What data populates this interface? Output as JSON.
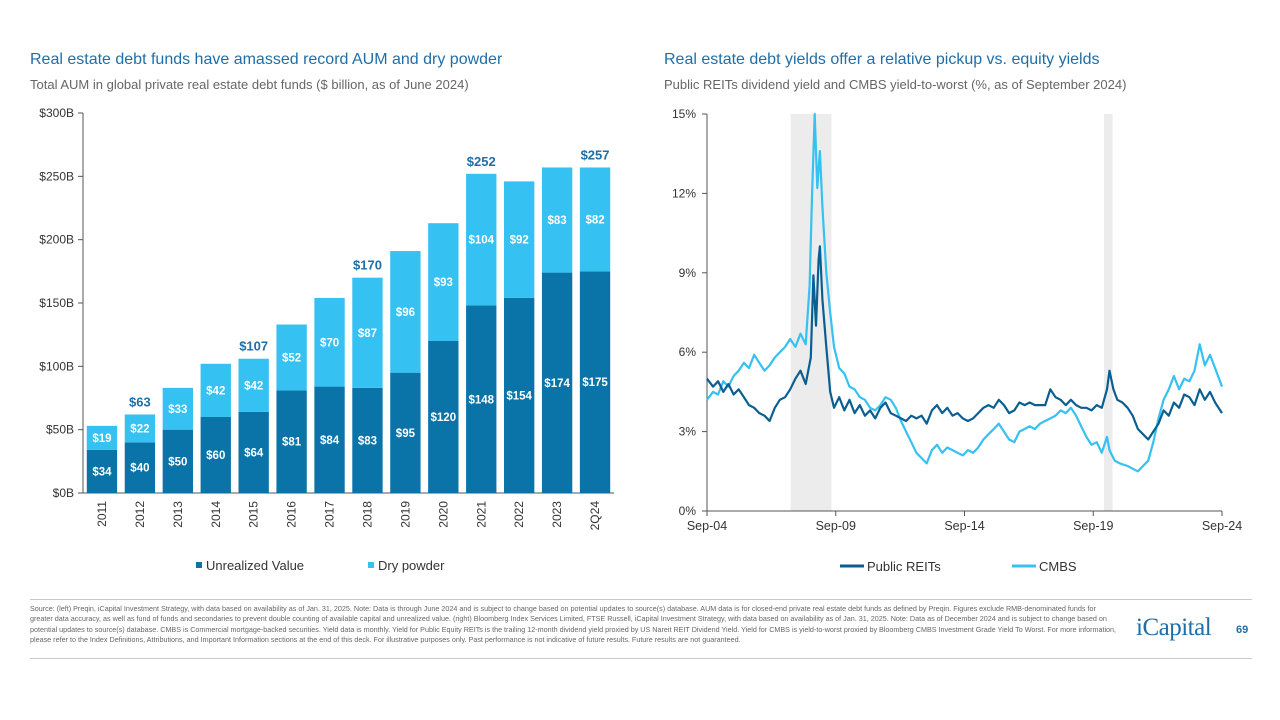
{
  "left_chart": {
    "title": "Real estate debt funds have amassed record AUM and dry powder",
    "subtitle": "Total AUM in global private real estate debt funds ($ billion, as of June 2024)",
    "chart_data": {
      "type": "bar",
      "stacked": true,
      "categories": [
        "2011",
        "2012",
        "2013",
        "2014",
        "2015",
        "2016",
        "2017",
        "2018",
        "2019",
        "2020",
        "2021",
        "2022",
        "2023",
        "2Q24"
      ],
      "series": [
        {
          "name": "Unrealized Value",
          "color": "#0a73a8",
          "values": [
            34,
            40,
            50,
            60,
            64,
            81,
            84,
            83,
            95,
            120,
            148,
            154,
            174,
            175
          ]
        },
        {
          "name": "Dry powder",
          "color": "#35c1f1",
          "values": [
            19,
            22,
            33,
            42,
            42,
            52,
            70,
            87,
            96,
            93,
            104,
            92,
            83,
            82
          ]
        }
      ],
      "totals": [
        {
          "index": 1,
          "label": "$63"
        },
        {
          "index": 4,
          "label": "$107"
        },
        {
          "index": 7,
          "label": "$170"
        },
        {
          "index": 10,
          "label": "$252"
        },
        {
          "index": 13,
          "label": "$257"
        }
      ],
      "yticks": [
        "$0B",
        "$50B",
        "$100B",
        "$150B",
        "$200B",
        "$250B",
        "$300B"
      ],
      "ylim": [
        0,
        300
      ],
      "legend": [
        "Unrealized Value",
        "Dry powder"
      ],
      "legend_position": "bottom"
    }
  },
  "right_chart": {
    "title": "Real estate debt yields offer a relative pickup vs. equity yields",
    "subtitle": "Public REITs dividend yield and CMBS yield-to-worst (%, as of September  2024)",
    "chart_data": {
      "type": "line",
      "xlim": [
        2004.667,
        2024.667
      ],
      "ylim": [
        0,
        15
      ],
      "xticks": [
        {
          "value": 2004.667,
          "label": "Sep-04"
        },
        {
          "value": 2009.667,
          "label": "Sep-09"
        },
        {
          "value": 2014.667,
          "label": "Sep-14"
        },
        {
          "value": 2019.667,
          "label": "Sep-19"
        },
        {
          "value": 2024.667,
          "label": "Sep-24"
        }
      ],
      "yticks": [
        {
          "value": 0,
          "label": "0%"
        },
        {
          "value": 3,
          "label": "3%"
        },
        {
          "value": 6,
          "label": "6%"
        },
        {
          "value": 9,
          "label": "9%"
        },
        {
          "value": 12,
          "label": "12%"
        },
        {
          "value": 15,
          "label": "15%"
        }
      ],
      "recessions": [
        [
          2007.917,
          2009.5
        ],
        [
          2020.083,
          2020.417
        ]
      ],
      "legend_position": "bottom",
      "series": [
        {
          "name": "Public REITs",
          "color": "#0a5f92",
          "points": [
            [
              2004.667,
              5.0
            ],
            [
              2004.9,
              4.7
            ],
            [
              2005.1,
              4.9
            ],
            [
              2005.3,
              4.5
            ],
            [
              2005.5,
              4.8
            ],
            [
              2005.7,
              4.4
            ],
            [
              2005.9,
              4.6
            ],
            [
              2006.1,
              4.3
            ],
            [
              2006.3,
              4.0
            ],
            [
              2006.5,
              3.9
            ],
            [
              2006.7,
              3.7
            ],
            [
              2006.9,
              3.6
            ],
            [
              2007.1,
              3.4
            ],
            [
              2007.3,
              3.9
            ],
            [
              2007.5,
              4.2
            ],
            [
              2007.7,
              4.3
            ],
            [
              2007.9,
              4.6
            ],
            [
              2008.1,
              5.0
            ],
            [
              2008.3,
              5.3
            ],
            [
              2008.5,
              4.8
            ],
            [
              2008.7,
              5.8
            ],
            [
              2008.8,
              8.9
            ],
            [
              2008.9,
              7.0
            ],
            [
              2009.0,
              9.5
            ],
            [
              2009.05,
              10.0
            ],
            [
              2009.15,
              8.0
            ],
            [
              2009.3,
              6.2
            ],
            [
              2009.45,
              4.5
            ],
            [
              2009.6,
              3.9
            ],
            [
              2009.8,
              4.3
            ],
            [
              2010.0,
              3.8
            ],
            [
              2010.2,
              4.2
            ],
            [
              2010.4,
              3.7
            ],
            [
              2010.6,
              4.0
            ],
            [
              2010.8,
              3.6
            ],
            [
              2011.0,
              3.8
            ],
            [
              2011.2,
              3.5
            ],
            [
              2011.4,
              3.9
            ],
            [
              2011.6,
              4.1
            ],
            [
              2011.8,
              3.7
            ],
            [
              2012.0,
              3.6
            ],
            [
              2012.2,
              3.5
            ],
            [
              2012.4,
              3.4
            ],
            [
              2012.6,
              3.6
            ],
            [
              2012.8,
              3.5
            ],
            [
              2013.0,
              3.6
            ],
            [
              2013.2,
              3.3
            ],
            [
              2013.4,
              3.8
            ],
            [
              2013.6,
              4.0
            ],
            [
              2013.8,
              3.7
            ],
            [
              2014.0,
              3.9
            ],
            [
              2014.2,
              3.6
            ],
            [
              2014.4,
              3.7
            ],
            [
              2014.6,
              3.5
            ],
            [
              2014.8,
              3.4
            ],
            [
              2015.0,
              3.5
            ],
            [
              2015.2,
              3.7
            ],
            [
              2015.4,
              3.9
            ],
            [
              2015.6,
              4.0
            ],
            [
              2015.8,
              3.9
            ],
            [
              2016.0,
              4.2
            ],
            [
              2016.2,
              4.0
            ],
            [
              2016.4,
              3.7
            ],
            [
              2016.6,
              3.8
            ],
            [
              2016.8,
              4.1
            ],
            [
              2017.0,
              4.0
            ],
            [
              2017.2,
              4.1
            ],
            [
              2017.4,
              4.0
            ],
            [
              2017.6,
              4.0
            ],
            [
              2017.8,
              4.0
            ],
            [
              2018.0,
              4.6
            ],
            [
              2018.2,
              4.3
            ],
            [
              2018.4,
              4.2
            ],
            [
              2018.6,
              4.0
            ],
            [
              2018.8,
              4.2
            ],
            [
              2019.0,
              4.0
            ],
            [
              2019.2,
              3.9
            ],
            [
              2019.4,
              3.9
            ],
            [
              2019.6,
              3.8
            ],
            [
              2019.8,
              4.0
            ],
            [
              2020.0,
              3.9
            ],
            [
              2020.2,
              4.6
            ],
            [
              2020.3,
              5.3
            ],
            [
              2020.45,
              4.6
            ],
            [
              2020.6,
              4.2
            ],
            [
              2020.8,
              4.1
            ],
            [
              2021.0,
              3.9
            ],
            [
              2021.2,
              3.6
            ],
            [
              2021.4,
              3.1
            ],
            [
              2021.6,
              2.9
            ],
            [
              2021.8,
              2.7
            ],
            [
              2022.0,
              3.0
            ],
            [
              2022.2,
              3.3
            ],
            [
              2022.4,
              3.8
            ],
            [
              2022.6,
              3.6
            ],
            [
              2022.8,
              4.1
            ],
            [
              2023.0,
              3.9
            ],
            [
              2023.2,
              4.4
            ],
            [
              2023.4,
              4.3
            ],
            [
              2023.6,
              4.0
            ],
            [
              2023.8,
              4.6
            ],
            [
              2024.0,
              4.2
            ],
            [
              2024.2,
              4.5
            ],
            [
              2024.4,
              4.1
            ],
            [
              2024.667,
              3.7
            ]
          ]
        },
        {
          "name": "CMBS",
          "color": "#35c1f1",
          "points": [
            [
              2004.667,
              4.2
            ],
            [
              2004.9,
              4.5
            ],
            [
              2005.1,
              4.4
            ],
            [
              2005.3,
              4.9
            ],
            [
              2005.5,
              4.7
            ],
            [
              2005.7,
              5.1
            ],
            [
              2005.9,
              5.3
            ],
            [
              2006.1,
              5.6
            ],
            [
              2006.3,
              5.4
            ],
            [
              2006.5,
              5.9
            ],
            [
              2006.7,
              5.6
            ],
            [
              2006.9,
              5.3
            ],
            [
              2007.1,
              5.5
            ],
            [
              2007.3,
              5.8
            ],
            [
              2007.5,
              6.0
            ],
            [
              2007.7,
              6.2
            ],
            [
              2007.9,
              6.5
            ],
            [
              2008.1,
              6.2
            ],
            [
              2008.3,
              6.7
            ],
            [
              2008.5,
              6.3
            ],
            [
              2008.65,
              8.5
            ],
            [
              2008.75,
              12.0
            ],
            [
              2008.85,
              15.0
            ],
            [
              2008.95,
              12.2
            ],
            [
              2009.05,
              13.6
            ],
            [
              2009.15,
              11.5
            ],
            [
              2009.3,
              9.0
            ],
            [
              2009.45,
              7.5
            ],
            [
              2009.6,
              6.2
            ],
            [
              2009.8,
              5.4
            ],
            [
              2010.0,
              5.2
            ],
            [
              2010.2,
              4.7
            ],
            [
              2010.4,
              4.6
            ],
            [
              2010.6,
              4.3
            ],
            [
              2010.8,
              4.2
            ],
            [
              2011.0,
              3.9
            ],
            [
              2011.2,
              3.8
            ],
            [
              2011.4,
              4.0
            ],
            [
              2011.6,
              4.3
            ],
            [
              2011.8,
              4.2
            ],
            [
              2012.0,
              3.9
            ],
            [
              2012.2,
              3.4
            ],
            [
              2012.4,
              3.0
            ],
            [
              2012.6,
              2.6
            ],
            [
              2012.8,
              2.2
            ],
            [
              2013.0,
              2.0
            ],
            [
              2013.2,
              1.8
            ],
            [
              2013.4,
              2.3
            ],
            [
              2013.6,
              2.5
            ],
            [
              2013.8,
              2.2
            ],
            [
              2014.0,
              2.4
            ],
            [
              2014.2,
              2.3
            ],
            [
              2014.4,
              2.2
            ],
            [
              2014.6,
              2.1
            ],
            [
              2014.8,
              2.3
            ],
            [
              2015.0,
              2.2
            ],
            [
              2015.2,
              2.4
            ],
            [
              2015.4,
              2.7
            ],
            [
              2015.6,
              2.9
            ],
            [
              2015.8,
              3.1
            ],
            [
              2016.0,
              3.3
            ],
            [
              2016.2,
              3.0
            ],
            [
              2016.4,
              2.7
            ],
            [
              2016.6,
              2.6
            ],
            [
              2016.8,
              3.0
            ],
            [
              2017.0,
              3.1
            ],
            [
              2017.2,
              3.2
            ],
            [
              2017.4,
              3.1
            ],
            [
              2017.6,
              3.3
            ],
            [
              2017.8,
              3.4
            ],
            [
              2018.0,
              3.5
            ],
            [
              2018.2,
              3.6
            ],
            [
              2018.4,
              3.8
            ],
            [
              2018.6,
              3.7
            ],
            [
              2018.8,
              3.9
            ],
            [
              2019.0,
              3.6
            ],
            [
              2019.2,
              3.2
            ],
            [
              2019.4,
              2.8
            ],
            [
              2019.6,
              2.5
            ],
            [
              2019.8,
              2.6
            ],
            [
              2020.0,
              2.2
            ],
            [
              2020.2,
              2.8
            ],
            [
              2020.3,
              2.3
            ],
            [
              2020.5,
              1.9
            ],
            [
              2020.7,
              1.8
            ],
            [
              2021.0,
              1.7
            ],
            [
              2021.2,
              1.6
            ],
            [
              2021.4,
              1.5
            ],
            [
              2021.6,
              1.7
            ],
            [
              2021.8,
              1.9
            ],
            [
              2022.0,
              2.6
            ],
            [
              2022.2,
              3.5
            ],
            [
              2022.4,
              4.2
            ],
            [
              2022.6,
              4.6
            ],
            [
              2022.8,
              5.1
            ],
            [
              2023.0,
              4.6
            ],
            [
              2023.2,
              5.0
            ],
            [
              2023.4,
              4.9
            ],
            [
              2023.6,
              5.3
            ],
            [
              2023.8,
              6.3
            ],
            [
              2024.0,
              5.5
            ],
            [
              2024.2,
              5.9
            ],
            [
              2024.4,
              5.4
            ],
            [
              2024.667,
              4.7
            ]
          ]
        }
      ]
    }
  },
  "footer": {
    "source": "Source: (left) Preqin, iCapital Investment Strategy, with data based on availability as of Jan. 31, 2025. Note: Data is through June 2024 and is subject to change based on potential updates to source(s) database. AUM data is for closed-end private real estate debt funds as defined by Preqin. Figures exclude RMB-denominated funds for greater data accuracy, as well as fund of funds and secondaries to prevent double counting of available capital and unrealized value. (right) Bloomberg Index Services Limited, FTSE Russell, iCapital Investment Strategy, with data based on availability as of Jan. 31, 2025. Note: Data as of December 2024 and is subject to change based on potential updates to source(s) database. CMBS is Commercial mortgage-backed securities. Yield data is monthly. Yield for Public Equity REITs is the trailing 12-month dividend yield proxied by US Nareit REIT Dividend Yield. Yield for CMBS is yield-to-worst proxied by Bloomberg CMBS Investment Grade Yield To Worst. For more information, please refer to the Index Definitions, Attributions, and Important Information sections at the end of this deck. For illustrative purposes only. Past performance is not indicative of future results. Future results are not guaranteed.",
    "logo": "iCapital",
    "page_number": "69"
  }
}
